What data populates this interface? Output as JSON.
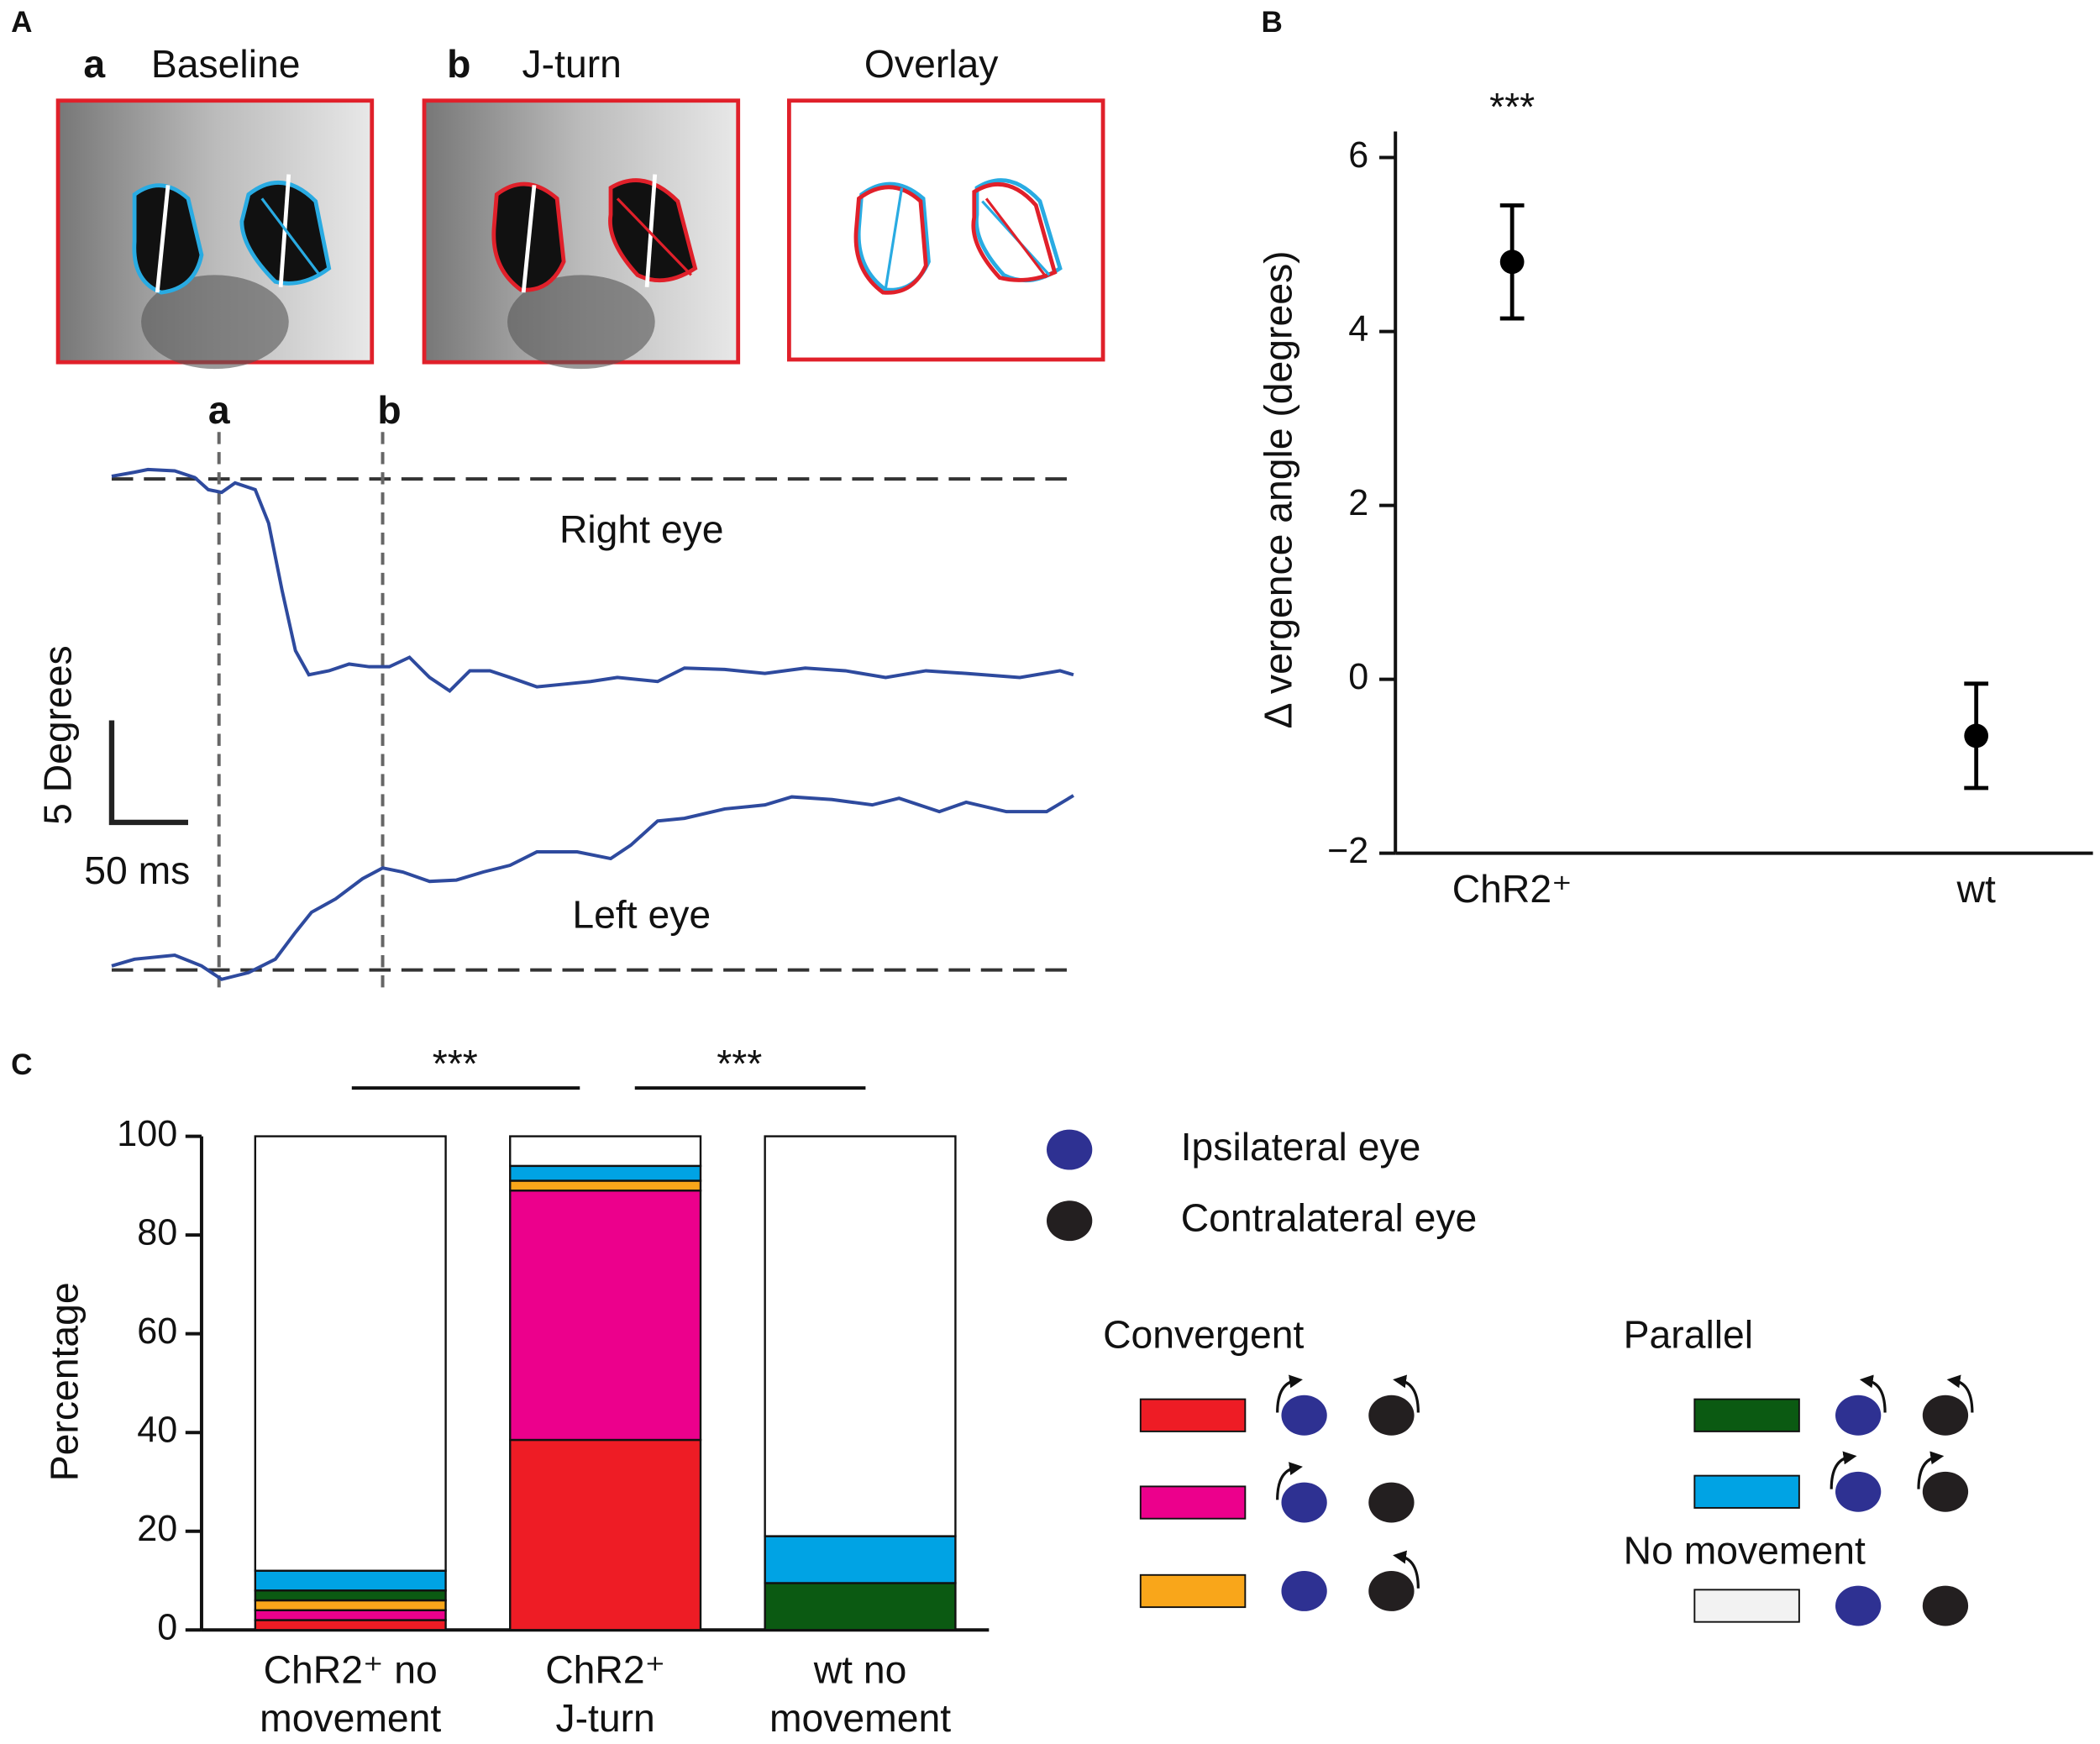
{
  "panel_a": {
    "label": "A",
    "images": [
      {
        "letter": "a",
        "title": "Baseline"
      },
      {
        "letter": "b",
        "title": "J-turn"
      },
      {
        "title": "Overlay"
      }
    ],
    "markers": [
      "a",
      "b"
    ],
    "traces": [
      "Right eye",
      "Left eye"
    ],
    "scale_bar": {
      "y": "5 Degrees",
      "x": "50 ms"
    }
  },
  "chart_data": [
    {
      "type": "errorbar",
      "panel": "B",
      "ylabel": "Δ vergence angle (degrees)",
      "categories": [
        "ChR2⁺",
        "wt"
      ],
      "values": [
        4.8,
        -0.65
      ],
      "errors": [
        0.65,
        0.6
      ],
      "color": "#000000",
      "annotations": [
        "***"
      ],
      "ylim": [
        -2,
        6.3
      ],
      "yticks": [
        {
          "value": -2,
          "label": "−2"
        },
        0,
        2,
        4,
        6
      ]
    },
    {
      "type": "stacked_bar",
      "panel": "C",
      "ylabel": "Percentage",
      "categories": [
        [
          "ChR2⁺ no",
          "movement"
        ],
        [
          "ChR2⁺",
          "J-turn"
        ],
        [
          "wt no",
          "movement"
        ]
      ],
      "series": [
        {
          "color": "#ee1c25",
          "values": [
            2,
            38.5,
            0
          ]
        },
        {
          "color": "#ec008c",
          "values": [
            2,
            50.5,
            0
          ]
        },
        {
          "color": "#f9a61a",
          "values": [
            2,
            2,
            0
          ]
        },
        {
          "color": "#0b5a12",
          "values": [
            2,
            0,
            9.5
          ]
        },
        {
          "color": "#00a3e4",
          "values": [
            4,
            3,
            9.5
          ]
        },
        {
          "color": "#ffffff",
          "values": [
            88,
            6,
            81
          ]
        }
      ],
      "significance": [
        "***",
        "***"
      ],
      "eye_key": [
        "Ipsilateral eye",
        "Contralateral eye"
      ],
      "legend_groups": [
        "Convergent",
        "Parallel",
        "No movement"
      ],
      "ylim": [
        0,
        100
      ],
      "yticks": [
        0,
        20,
        40,
        60,
        80,
        100
      ]
    }
  ]
}
